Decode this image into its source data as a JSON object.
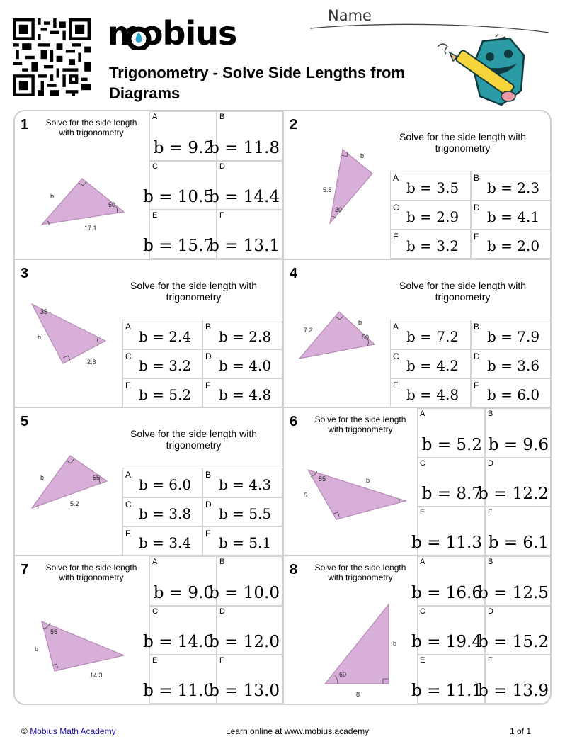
{
  "header": {
    "logo": "mobius",
    "title": "Trigonometry - Solve Side Lengths from Diagrams",
    "name_label": "Name"
  },
  "problems": [
    {
      "number": "1",
      "prompt": "Solve for the side length with trigonometry",
      "labels": {
        "side": "b",
        "angle": "50",
        "base": "17.1"
      },
      "options": [
        {
          "letter": "A",
          "value": "b = 9.2"
        },
        {
          "letter": "B",
          "value": "b = 11.8"
        },
        {
          "letter": "C",
          "value": "b = 10.5"
        },
        {
          "letter": "D",
          "value": "b = 14.4"
        },
        {
          "letter": "E",
          "value": "b = 15.7"
        },
        {
          "letter": "F",
          "value": "b = 13.1"
        }
      ]
    },
    {
      "number": "2",
      "prompt": "Solve for the side length with trigonometry",
      "labels": {
        "side": "b",
        "angle": "30",
        "base": "5.8"
      },
      "options": [
        {
          "letter": "A",
          "value": "b = 3.5"
        },
        {
          "letter": "B",
          "value": "b = 2.3"
        },
        {
          "letter": "C",
          "value": "b = 2.9"
        },
        {
          "letter": "D",
          "value": "b = 4.1"
        },
        {
          "letter": "E",
          "value": "b = 3.2"
        },
        {
          "letter": "F",
          "value": "b = 2.0"
        }
      ]
    },
    {
      "number": "3",
      "prompt": "Solve for the side length with trigonometry",
      "labels": {
        "side": "b",
        "angle": "35",
        "base": "2.8"
      },
      "options": [
        {
          "letter": "A",
          "value": "b = 2.4"
        },
        {
          "letter": "B",
          "value": "b = 2.8"
        },
        {
          "letter": "C",
          "value": "b = 3.2"
        },
        {
          "letter": "D",
          "value": "b = 4.0"
        },
        {
          "letter": "E",
          "value": "b = 5.2"
        },
        {
          "letter": "F",
          "value": "b = 4.8"
        }
      ]
    },
    {
      "number": "4",
      "prompt": "Solve for the side length with trigonometry",
      "labels": {
        "side": "b",
        "angle": "50",
        "base": "7.2"
      },
      "options": [
        {
          "letter": "A",
          "value": "b = 7.2"
        },
        {
          "letter": "B",
          "value": "b = 7.9"
        },
        {
          "letter": "C",
          "value": "b = 4.2"
        },
        {
          "letter": "D",
          "value": "b = 3.6"
        },
        {
          "letter": "E",
          "value": "b = 4.8"
        },
        {
          "letter": "F",
          "value": "b = 6.0"
        }
      ]
    },
    {
      "number": "5",
      "prompt": "Solve for the side length with trigonometry",
      "labels": {
        "side": "b",
        "angle": "55",
        "base": "5.2"
      },
      "options": [
        {
          "letter": "A",
          "value": "b = 6.0"
        },
        {
          "letter": "B",
          "value": "b = 4.3"
        },
        {
          "letter": "C",
          "value": "b = 3.8"
        },
        {
          "letter": "D",
          "value": "b = 5.5"
        },
        {
          "letter": "E",
          "value": "b = 3.4"
        },
        {
          "letter": "F",
          "value": "b = 5.1"
        }
      ]
    },
    {
      "number": "6",
      "prompt": "Solve for the side length with trigonometry",
      "labels": {
        "side": "b",
        "angle": "55",
        "base": "5"
      },
      "options": [
        {
          "letter": "A",
          "value": "b = 5.2"
        },
        {
          "letter": "B",
          "value": "b = 9.6"
        },
        {
          "letter": "C",
          "value": "b = 8.7"
        },
        {
          "letter": "D",
          "value": "b = 12.2"
        },
        {
          "letter": "E",
          "value": "b = 11.3"
        },
        {
          "letter": "F",
          "value": "b = 6.1"
        }
      ]
    },
    {
      "number": "7",
      "prompt": "Solve for the side length with trigonometry",
      "labels": {
        "side": "b",
        "angle": "55",
        "base": "14.3"
      },
      "options": [
        {
          "letter": "A",
          "value": "b = 9.0"
        },
        {
          "letter": "B",
          "value": "b = 10.0"
        },
        {
          "letter": "C",
          "value": "b = 14.0"
        },
        {
          "letter": "D",
          "value": "b = 12.0"
        },
        {
          "letter": "E",
          "value": "b = 11.0"
        },
        {
          "letter": "F",
          "value": "b = 13.0"
        }
      ]
    },
    {
      "number": "8",
      "prompt": "Solve for the side length with trigonometry",
      "labels": {
        "side": "b",
        "angle": "60",
        "base": "8"
      },
      "options": [
        {
          "letter": "A",
          "value": "b = 16.6"
        },
        {
          "letter": "B",
          "value": "b = 12.5"
        },
        {
          "letter": "C",
          "value": "b = 19.4"
        },
        {
          "letter": "D",
          "value": "b = 15.2"
        },
        {
          "letter": "E",
          "value": "b = 11.1"
        },
        {
          "letter": "F",
          "value": "b = 13.9"
        }
      ]
    }
  ],
  "footer": {
    "copyright": "©",
    "link_text": "Mobius Math Academy",
    "center": "Learn online at www.mobius.academy",
    "page": "1 of 1"
  },
  "colors": {
    "triangle_fill": "#d8afd8",
    "triangle_stroke": "#b58ab5",
    "logo_dot": "#2aa6cf",
    "mascot": "#2a9aa5"
  }
}
